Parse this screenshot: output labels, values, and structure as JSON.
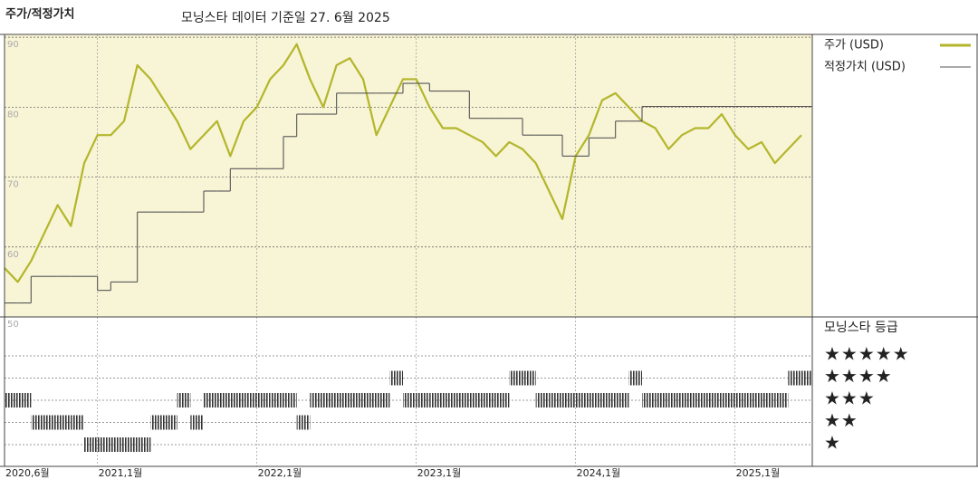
{
  "chart_data": {
    "type": "line",
    "title": "주가/적정가치",
    "subtitle": "모닝스타 데이터 기준일 27. 6월 2025",
    "x": [
      "2020-06",
      "2020-07",
      "2020-08",
      "2020-09",
      "2020-10",
      "2020-11",
      "2020-12",
      "2021-01",
      "2021-02",
      "2021-03",
      "2021-04",
      "2021-05",
      "2021-06",
      "2021-07",
      "2021-08",
      "2021-09",
      "2021-10",
      "2021-11",
      "2021-12",
      "2022-01",
      "2022-02",
      "2022-03",
      "2022-04",
      "2022-05",
      "2022-06",
      "2022-07",
      "2022-08",
      "2022-09",
      "2022-10",
      "2022-11",
      "2022-12",
      "2023-01",
      "2023-02",
      "2023-03",
      "2023-04",
      "2023-05",
      "2023-06",
      "2023-07",
      "2023-08",
      "2023-09",
      "2023-10",
      "2023-11",
      "2023-12",
      "2024-01",
      "2024-02",
      "2024-03",
      "2024-04",
      "2024-05",
      "2024-06",
      "2024-07",
      "2024-08",
      "2024-09",
      "2024-10",
      "2024-11",
      "2024-12",
      "2025-01",
      "2025-02",
      "2025-03",
      "2025-04",
      "2025-05",
      "2025-06"
    ],
    "series": [
      {
        "name": "주가 (USD)",
        "color": "#b3b62b",
        "values": [
          57,
          55,
          58,
          62,
          66,
          63,
          72,
          76,
          76,
          78,
          86,
          84,
          81,
          78,
          74,
          76,
          78,
          73,
          78,
          80,
          84,
          86,
          89,
          84,
          80,
          86,
          87,
          84,
          76,
          80,
          84,
          84,
          80,
          77,
          77,
          76,
          75,
          73,
          75,
          74,
          72,
          68,
          64,
          73,
          76,
          81,
          82,
          80,
          78,
          77,
          74,
          76,
          77,
          77,
          79,
          76,
          74,
          75,
          72,
          74,
          76
        ]
      },
      {
        "name": "적정가치 (USD)",
        "color": "#555555",
        "step": true,
        "values": [
          52,
          52,
          55.8,
          55.8,
          55.8,
          55.8,
          55.8,
          53.8,
          55,
          55,
          65,
          65,
          65,
          65,
          65,
          68,
          68,
          71.2,
          71.2,
          71.2,
          71.2,
          75.8,
          79,
          79,
          79,
          82,
          82,
          82,
          82,
          82,
          83.4,
          83.4,
          82.3,
          82.3,
          82.3,
          78.4,
          78.4,
          78.4,
          78.4,
          76,
          76,
          76,
          73,
          73,
          75.6,
          75.6,
          78,
          78,
          80.1,
          80.1,
          80.1,
          80.1,
          80.1,
          80.1,
          80.1,
          80.1,
          80.1,
          80.1,
          80.1,
          80.1,
          80.1
        ]
      }
    ],
    "ylim": [
      50,
      90.4
    ],
    "yticks": [
      50,
      60,
      70,
      80,
      90
    ],
    "xticks": [
      {
        "value": "2020-06",
        "label": "2020,6월"
      },
      {
        "value": "2021-01",
        "label": "2021,1월"
      },
      {
        "value": "2022-01",
        "label": "2022,1월"
      },
      {
        "value": "2023-01",
        "label": "2023,1월"
      },
      {
        "value": "2024-01",
        "label": "2024,1월"
      },
      {
        "value": "2025-01",
        "label": "2025,1월"
      }
    ],
    "grid": true,
    "ratings": {
      "title": "모닝스타 등급",
      "categories": [
        "★",
        "★★",
        "★★★",
        "★★★★",
        "★★★★★"
      ],
      "color": "#333333",
      "values": [
        3,
        3,
        2,
        2,
        2,
        2,
        1,
        1,
        1,
        1,
        1,
        2,
        2,
        3,
        2,
        3,
        3,
        3,
        3,
        3,
        3,
        3,
        2,
        3,
        3,
        3,
        3,
        3,
        3,
        4,
        3,
        3,
        3,
        3,
        3,
        3,
        3,
        3,
        4,
        4,
        3,
        3,
        3,
        3,
        3,
        3,
        3,
        4,
        3,
        3,
        3,
        3,
        3,
        3,
        3,
        3,
        3,
        3,
        3,
        4,
        4
      ]
    }
  }
}
